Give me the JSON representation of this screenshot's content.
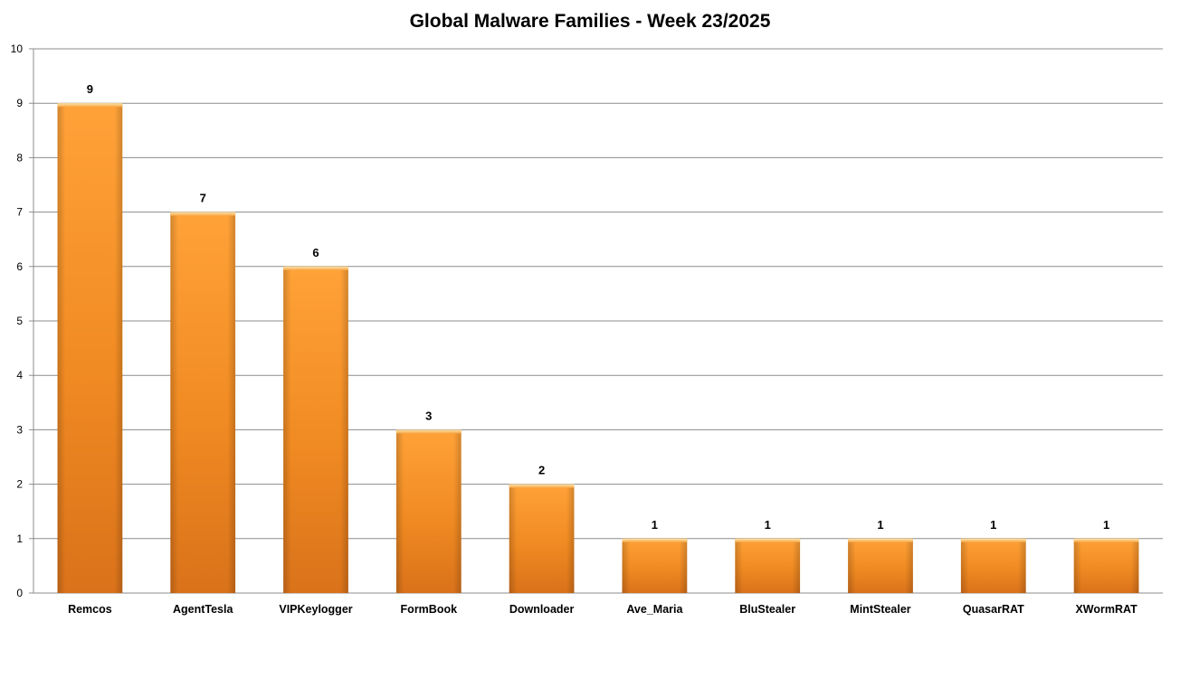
{
  "chart_data": {
    "type": "bar",
    "title": "Global Malware Families - Week 23/2025",
    "xlabel": "",
    "ylabel": "",
    "categories": [
      "Remcos",
      "AgentTesla",
      "VIPKeylogger",
      "FormBook",
      "Downloader",
      "Ave_Maria",
      "BluStealer",
      "MintStealer",
      "QuasarRAT",
      "XWormRAT"
    ],
    "values": [
      9,
      7,
      6,
      3,
      2,
      1,
      1,
      1,
      1,
      1
    ],
    "data_labels": [
      "9",
      "7",
      "6",
      "3",
      "2",
      "1",
      "1",
      "1",
      "1",
      "1"
    ],
    "ylim": [
      0,
      10
    ],
    "y_ticks": [
      "0",
      "1",
      "2",
      "3",
      "4",
      "5",
      "6",
      "7",
      "8",
      "9",
      "10"
    ],
    "grid": true,
    "legend": "none",
    "bar_color": "#F7931E"
  }
}
